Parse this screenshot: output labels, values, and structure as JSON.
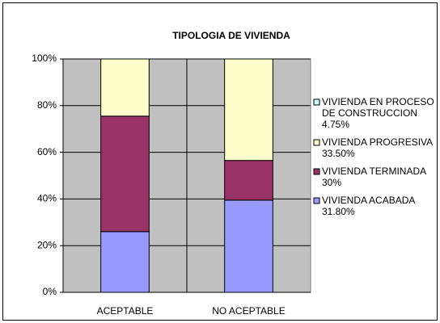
{
  "chart_data": {
    "type": "stacked_bar_100",
    "title": "TIPOLOGIA DE VIVIENDA",
    "categories": [
      "ACEPTABLE",
      "NO ACEPTABLE"
    ],
    "series": [
      {
        "name": "VIVIENDA ACABADA",
        "legend_label": "31.80%",
        "color": "#9999ff",
        "values": [
          26,
          39.5
        ]
      },
      {
        "name": "VIVIENDA TERMINADA",
        "legend_label": "30%",
        "color": "#993366",
        "values": [
          49.5,
          17
        ]
      },
      {
        "name": "VIVIENDA PROGRESIVA",
        "legend_label": "33.50%",
        "color": "#ffffcc",
        "values": [
          24.5,
          43.5
        ]
      },
      {
        "name": "VIVIENDA EN PROCESO DE CONSTRUCCION",
        "legend_label": "4.75%",
        "color": "#ccffff",
        "values": [
          0,
          0
        ]
      }
    ],
    "ylim": [
      0,
      100
    ],
    "yticks": [
      {
        "value": 0,
        "label": "0%"
      },
      {
        "value": 20,
        "label": "20%"
      },
      {
        "value": 40,
        "label": "40%"
      },
      {
        "value": 60,
        "label": "60%"
      },
      {
        "value": 80,
        "label": "80%"
      },
      {
        "value": 100,
        "label": "100%"
      }
    ],
    "grid": true,
    "legend": "right"
  }
}
